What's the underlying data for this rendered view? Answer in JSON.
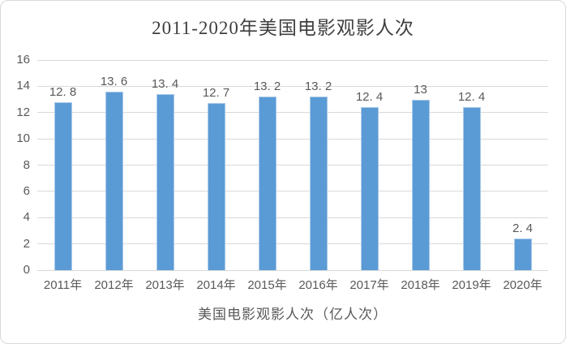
{
  "chart_data": {
    "type": "bar",
    "title": "2011-2020年美国电影观影人次",
    "categories": [
      "2011年",
      "2012年",
      "2013年",
      "2014年",
      "2015年",
      "2016年",
      "2017年",
      "2018年",
      "2019年",
      "2020年"
    ],
    "values": [
      12.8,
      13.6,
      13.4,
      12.7,
      13.2,
      13.2,
      12.4,
      13,
      12.4,
      2.4
    ],
    "data_labels": [
      "12. 8",
      "13. 6",
      "13. 4",
      "12. 7",
      "13. 2",
      "13. 2",
      "12. 4",
      "13",
      "12. 4",
      "2. 4"
    ],
    "xlabel": "美国电影观影人次（亿人次）",
    "ylabel": "",
    "ylim": [
      0,
      16
    ],
    "y_ticks": [
      0,
      2,
      4,
      6,
      8,
      10,
      12,
      14,
      16
    ],
    "grid": "horizontal",
    "legend": "none",
    "colors": {
      "bar_fill": "#5b9bd5",
      "bar_edge": "#a9c9e9",
      "gridline": "#d9d9d9",
      "tick_label": "#595959",
      "title": "#3f3f3f"
    }
  }
}
